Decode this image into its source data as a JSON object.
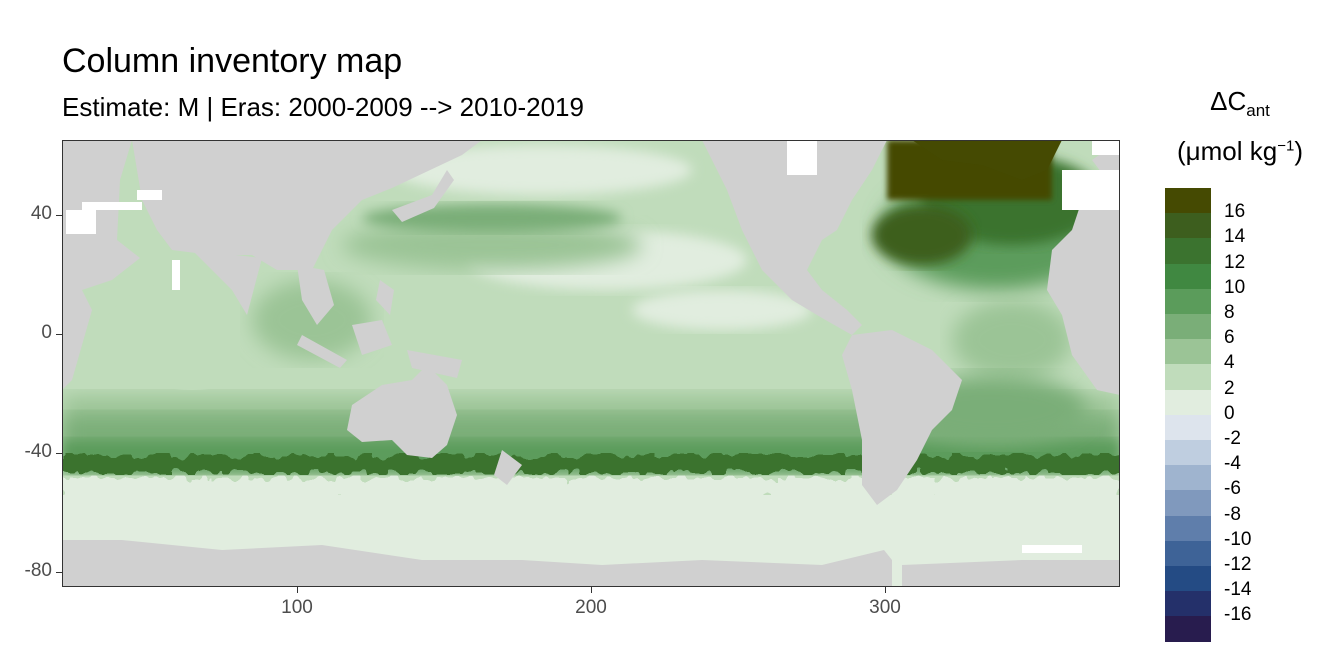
{
  "title": "Column inventory map",
  "subtitle": "Estimate: M  | Eras: 2000-2009 --> 2010-2019",
  "legend": {
    "symbol": "ΔC",
    "symbol_sub": "ant",
    "unit_prefix": "(μmol kg",
    "unit_sup": "−1",
    "unit_suffix": ")",
    "labels": [
      "16",
      "14",
      "12",
      "10",
      "8",
      "6",
      "4",
      "2",
      "0",
      "-2",
      "-4",
      "-6",
      "-8",
      "-10",
      "-12",
      "-14",
      "-16"
    ],
    "colors": [
      "#454a02",
      "#3d5e1e",
      "#3b732f",
      "#408841",
      "#5b9c5b",
      "#7aae78",
      "#9bc496",
      "#c0dcbb",
      "#e1eddf",
      "#dde4ed",
      "#bfcee0",
      "#9fb4cf",
      "#8099bd",
      "#5f7eab",
      "#3e6397",
      "#244b84",
      "#24306a",
      "#281c4e"
    ]
  },
  "axes": {
    "y_ticks": [
      "40",
      "0",
      "-40",
      "-80"
    ],
    "x_ticks": [
      "100",
      "200",
      "300"
    ]
  },
  "colors": {
    "land": "#d0d0d0",
    "missing": "#ffffff"
  }
}
